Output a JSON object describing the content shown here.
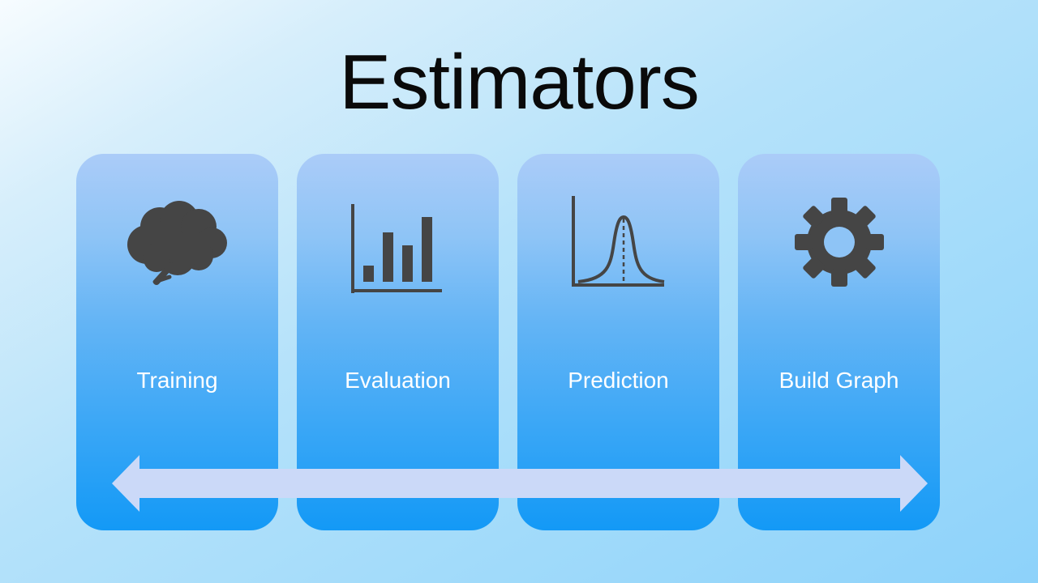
{
  "title": "Estimators",
  "cards": [
    {
      "label": "Training",
      "icon": "brain-icon"
    },
    {
      "label": "Evaluation",
      "icon": "bar-chart-icon"
    },
    {
      "label": "Prediction",
      "icon": "bell-curve-icon"
    },
    {
      "label": "Build Graph",
      "icon": "gear-icon"
    }
  ],
  "arrow": {
    "icon": "double-headed-arrow-icon"
  },
  "colors": {
    "icon": "#454545",
    "card_top": "#abccf8",
    "card_bottom": "#1399f6",
    "arrow": "#cbd9f8",
    "label": "#ffffff",
    "title": "#0a0a0a"
  }
}
